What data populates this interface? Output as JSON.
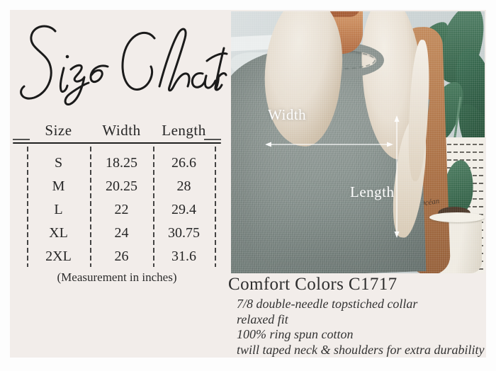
{
  "title": {
    "text": "Size Chart"
  },
  "size_table": {
    "columns": [
      "Size",
      "Width",
      "Length"
    ],
    "rows": [
      {
        "size": "S",
        "width": "18.25",
        "length": "26.6"
      },
      {
        "size": "M",
        "width": "20.25",
        "length": "28"
      },
      {
        "size": "L",
        "width": "22",
        "length": "29.4"
      },
      {
        "size": "XL",
        "width": "24",
        "length": "30.75"
      },
      {
        "size": "2XL",
        "width": "26",
        "length": "31.6"
      }
    ],
    "note": "(Measurement in inches)"
  },
  "product": {
    "name": "Comfort Colors C1717",
    "features": [
      "7/8 double-needle topstiched collar",
      "relaxed fit",
      "100% ring spun cotton",
      "twill taped neck & shoulders for extra durability"
    ]
  },
  "photo": {
    "width_label": "Width",
    "length_label": "Length",
    "tattoo_text": "Océan"
  },
  "colors": {
    "panel_background": "#f2edea",
    "ink": "#1f1f1f",
    "shirt_gray": "#8d9793",
    "plant_green": "#3c6e52",
    "overlay_white": "#fdfdfd"
  }
}
